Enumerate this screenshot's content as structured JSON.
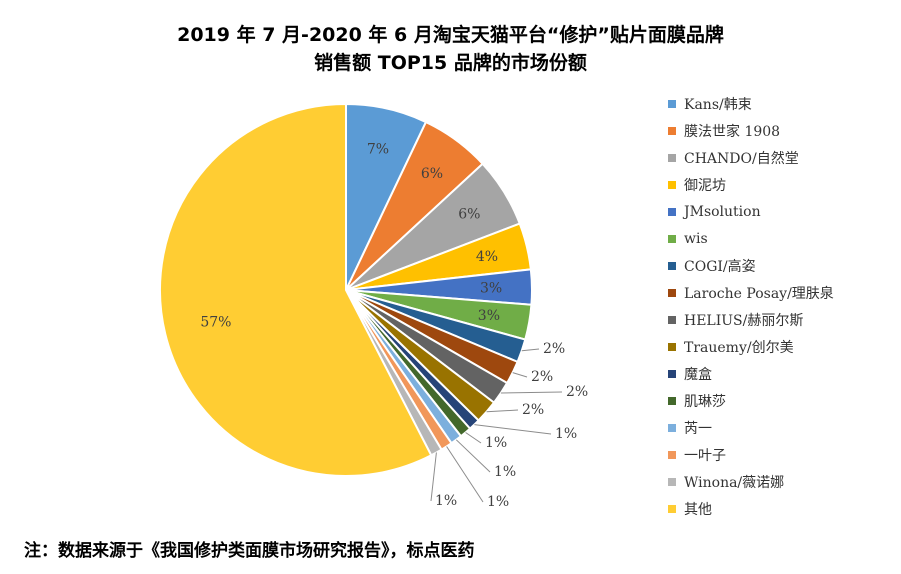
{
  "chart_data": {
    "type": "pie",
    "title": "2019 年 7 月-2020 年 6 月淘宝天猫平台“修护”贴片面膜品牌",
    "subtitle": "销售额 TOP15 品牌的市场份额",
    "legend_position": "right",
    "slices": [
      {
        "name": "Kans/韩束",
        "value": 7,
        "label": "7%",
        "color": "#5b9bd5"
      },
      {
        "name": "膜法世家 1908",
        "value": 6,
        "label": "6%",
        "color": "#ed7d31"
      },
      {
        "name": "CHANDO/自然堂",
        "value": 6,
        "label": "6%",
        "color": "#a5a5a5"
      },
      {
        "name": "御泥坊",
        "value": 4,
        "label": "4%",
        "color": "#ffc000"
      },
      {
        "name": "JMsolution",
        "value": 3,
        "label": "3%",
        "color": "#4472c4"
      },
      {
        "name": "wis",
        "value": 3,
        "label": "3%",
        "color": "#70ad47"
      },
      {
        "name": "COGI/高姿",
        "value": 2,
        "label": "2%",
        "color": "#255e91"
      },
      {
        "name": "Laroche Posay/理肤泉",
        "value": 2,
        "label": "2%",
        "color": "#9e480e"
      },
      {
        "name": "HELIUS/赫丽尔斯",
        "value": 2,
        "label": "2%",
        "color": "#636363"
      },
      {
        "name": "Trauemy/创尔美",
        "value": 2,
        "label": "2%",
        "color": "#997300"
      },
      {
        "name": "魔盒",
        "value": 1,
        "label": "1%",
        "color": "#264478"
      },
      {
        "name": "肌琳莎",
        "value": 1,
        "label": "1%",
        "color": "#43682b"
      },
      {
        "name": "芮一",
        "value": 1,
        "label": "1%",
        "color": "#7cafdd"
      },
      {
        "name": "一叶子",
        "value": 1,
        "label": "1%",
        "color": "#f1975a"
      },
      {
        "name": "Winona/薇诺娜",
        "value": 1,
        "label": "1%",
        "color": "#b7b7b7"
      },
      {
        "name": "其他",
        "value": 57,
        "label": "57%",
        "color": "#ffcd33"
      }
    ]
  },
  "footnote": "注：数据来源于《我国修护类面膜市场研究报告》，标点医药"
}
